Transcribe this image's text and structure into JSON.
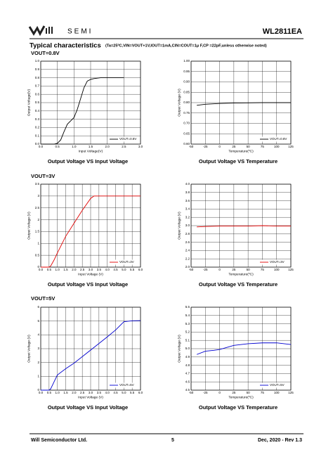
{
  "header": {
    "logo_text": "SEMI",
    "part_number": "WL2811EA"
  },
  "title": "Typical characteristics",
  "conditions": "(Ta=25ºC,VIN=VOUT+1V,IOUT=1mA,CIN=COUT=1μ F,CP =22pF,unless otherwise noted)",
  "sections": [
    "VOUT=0.8V",
    "VOUT=3V",
    "VOUT=5V"
  ],
  "chart_data": [
    {
      "type": "line",
      "title": "Output Voltage VS Input Voltage",
      "x_label": "Input Voltage(V)",
      "y_label": "Output Voltage(V)",
      "x": [
        0,
        0.2,
        0.4,
        0.5,
        0.6,
        0.7,
        0.8,
        0.9,
        1.0,
        1.1,
        1.2,
        1.3,
        1.4,
        1.5,
        1.6,
        1.8,
        2.0,
        2.5
      ],
      "series": [
        {
          "name": "VOUT=0.8V",
          "color": "#000000",
          "values": [
            0,
            0,
            0,
            0.01,
            0.05,
            0.15,
            0.24,
            0.28,
            0.32,
            0.42,
            0.55,
            0.68,
            0.76,
            0.78,
            0.79,
            0.8,
            0.8,
            0.8
          ]
        }
      ],
      "xlim": [
        0,
        3
      ],
      "xticks": [
        {
          "value": 0,
          "label": "0.0"
        },
        0.5,
        {
          "value": 1,
          "label": "1.0"
        },
        1.5,
        {
          "value": 2,
          "label": "2.0"
        },
        2.5,
        {
          "value": 3,
          "label": "3.0"
        }
      ],
      "ylim": [
        0,
        1
      ],
      "yticks": [
        {
          "value": 0,
          "label": "0.0"
        },
        0.1,
        0.2,
        0.3,
        0.4,
        0.5,
        0.6,
        0.7,
        0.8,
        0.9,
        {
          "value": 1,
          "label": "1.0"
        }
      ],
      "grid": true,
      "legend": "lower right"
    },
    {
      "type": "line",
      "title": "Output Voltage VS Temperature",
      "x_label": "Temperature(ºC)",
      "y_label": "Output Voltage (V)",
      "x": [
        -40,
        -25,
        0,
        25,
        50,
        75,
        100,
        125
      ],
      "series": [
        {
          "name": "VOUT=0.8V",
          "color": "#000000",
          "values": [
            0.787,
            0.792,
            0.796,
            0.798,
            0.799,
            0.8,
            0.8,
            0.8
          ]
        }
      ],
      "xlim": [
        -50,
        125
      ],
      "xticks": [
        -50,
        -25,
        0,
        25,
        50,
        75,
        100,
        125
      ],
      "ylim": [
        0.6,
        1
      ],
      "yticks": [
        {
          "value": 0.6,
          "label": "0.60"
        },
        0.65,
        {
          "value": 0.7,
          "label": "0.70"
        },
        0.75,
        {
          "value": 0.8,
          "label": "0.80"
        },
        0.85,
        {
          "value": 0.9,
          "label": "0.90"
        },
        0.95,
        {
          "value": 1,
          "label": "1.00"
        }
      ],
      "grid": true,
      "legend": "lower right"
    },
    {
      "type": "line",
      "title": "Output Voltage VS Input Voltage",
      "x_label": "Input Voltage (V)",
      "y_label": "Output Voltage (V)",
      "x": [
        0,
        0.5,
        0.6,
        0.8,
        1.0,
        1.5,
        2.0,
        2.5,
        3.0,
        3.2,
        4.0,
        5.0,
        6.0
      ],
      "series": [
        {
          "name": "VOUT=3V",
          "color": "#e00000",
          "values": [
            0,
            0,
            0.05,
            0.3,
            0.6,
            1.3,
            1.85,
            2.4,
            2.9,
            3.0,
            3.0,
            3.0,
            3.0
          ]
        }
      ],
      "xlim": [
        0,
        6
      ],
      "xticks": [
        {
          "value": 0,
          "label": "0.0"
        },
        0.5,
        {
          "value": 1,
          "label": "1.0"
        },
        1.5,
        {
          "value": 2,
          "label": "2.0"
        },
        2.5,
        {
          "value": 3,
          "label": "3.0"
        },
        3.5,
        {
          "value": 4,
          "label": "4.0"
        },
        4.5,
        {
          "value": 5,
          "label": "5.0"
        },
        5.5,
        {
          "value": 6,
          "label": "6.0"
        }
      ],
      "ylim": [
        0,
        3.5
      ],
      "yticks": [
        0,
        0.5,
        1,
        1.5,
        2,
        2.5,
        3,
        3.5
      ],
      "grid": true,
      "legend": "lower right"
    },
    {
      "type": "line",
      "title": "Output Voltage VS Temperature",
      "x_label": "Temperature(ºC)",
      "y_label": "Output Voltage (V)",
      "x": [
        -40,
        -25,
        0,
        25,
        50,
        75,
        100,
        125
      ],
      "series": [
        {
          "name": "VOUT=3V",
          "color": "#e00000",
          "values": [
            2.97,
            2.98,
            2.99,
            2.99,
            2.99,
            3.0,
            2.99,
            2.99
          ]
        }
      ],
      "xlim": [
        -50,
        125
      ],
      "xticks": [
        -50,
        -25,
        0,
        25,
        50,
        75,
        100,
        125
      ],
      "ylim": [
        2,
        4
      ],
      "yticks": [
        {
          "value": 2,
          "label": "2.0"
        },
        2.2,
        2.4,
        2.6,
        2.8,
        {
          "value": 3,
          "label": "3.0"
        },
        3.2,
        3.4,
        3.6,
        3.8,
        {
          "value": 4,
          "label": "4.0"
        }
      ],
      "grid": true,
      "legend": "lower right"
    },
    {
      "type": "line",
      "title": "Output Voltage VS Input Voltage",
      "x_label": "Input Voltage (V)",
      "y_label": "Output Voltage (V)",
      "x": [
        0,
        0.5,
        0.6,
        0.8,
        1.0,
        1.5,
        2.0,
        3.0,
        4.0,
        4.5,
        5.0,
        5.5,
        6.0
      ],
      "series": [
        {
          "name": "VOUT=5V",
          "color": "#0000d0",
          "values": [
            0,
            0,
            0.1,
            0.6,
            1.1,
            1.55,
            1.95,
            2.9,
            3.85,
            4.35,
            4.95,
            5.02,
            5.03
          ]
        }
      ],
      "xlim": [
        0,
        6
      ],
      "xticks": [
        {
          "value": 0,
          "label": "0.0"
        },
        0.5,
        {
          "value": 1,
          "label": "1.0"
        },
        1.5,
        {
          "value": 2,
          "label": "2.0"
        },
        2.5,
        {
          "value": 3,
          "label": "3.0"
        },
        3.5,
        {
          "value": 4,
          "label": "4.0"
        },
        4.5,
        {
          "value": 5,
          "label": "5.0"
        },
        5.5,
        {
          "value": 6,
          "label": "6.0"
        }
      ],
      "ylim": [
        0,
        6
      ],
      "yticks": [
        0,
        1,
        2,
        3,
        4,
        5,
        6
      ],
      "grid": true,
      "legend": "lower right"
    },
    {
      "type": "line",
      "title": "Output Voltage VS Temperature",
      "x_label": "Temperature(ºC)",
      "y_label": "Output Voltage (V)",
      "x": [
        -40,
        -25,
        -10,
        0,
        25,
        50,
        75,
        100,
        125
      ],
      "series": [
        {
          "name": "VOUT=5V",
          "color": "#0000d0",
          "values": [
            4.93,
            4.97,
            4.98,
            4.99,
            5.04,
            5.06,
            5.07,
            5.07,
            5.05
          ]
        }
      ],
      "xlim": [
        -50,
        125
      ],
      "xticks": [
        -50,
        -25,
        0,
        25,
        50,
        75,
        100,
        125
      ],
      "ylim": [
        4.5,
        5.5
      ],
      "yticks": [
        4.5,
        4.6,
        4.7,
        4.8,
        4.9,
        {
          "value": 5,
          "label": "5.0"
        },
        5.1,
        5.2,
        5.3,
        5.4,
        5.5
      ],
      "grid": true,
      "legend": "lower right"
    }
  ],
  "footer": {
    "company": "Will Semiconductor Ltd.",
    "page": "5",
    "revision": "Dec, 2020 - Rev 1.3"
  }
}
